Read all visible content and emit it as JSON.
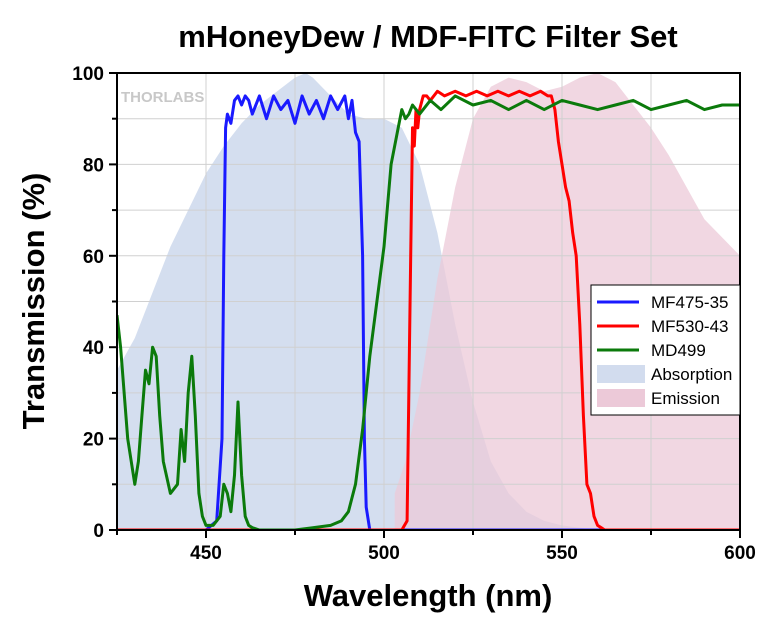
{
  "chart_data": {
    "type": "line",
    "title": "mHoneyDew / MDF-FITC Filter Set",
    "xlabel": "Wavelength (nm)",
    "ylabel": "Transmission (%)",
    "xlim": [
      425,
      600
    ],
    "ylim": [
      0,
      100
    ],
    "xticks": [
      450,
      500,
      550,
      600
    ],
    "yticks": [
      0,
      20,
      40,
      60,
      80,
      100
    ],
    "grid": true,
    "legend_position": "right",
    "watermark": "THORLABS",
    "series": [
      {
        "name": "MF475-35",
        "kind": "line",
        "color": "#1a1aff",
        "x": [
          425,
          450,
          453,
          454.5,
          455,
          455.5,
          456,
          457,
          458,
          459,
          460,
          461,
          462,
          463,
          465,
          467,
          469,
          471,
          473,
          475,
          477,
          479,
          481,
          483,
          485,
          487,
          489,
          490,
          491,
          492,
          493,
          494,
          494.5,
          495,
          496,
          500,
          600
        ],
        "y": [
          0,
          0,
          2,
          20,
          60,
          88,
          91,
          89,
          94,
          95,
          93,
          95,
          94,
          91,
          95,
          90,
          95,
          92,
          94,
          89,
          95,
          91,
          94,
          90,
          95,
          92,
          95,
          90,
          94,
          87,
          85,
          60,
          20,
          5,
          0,
          0,
          0
        ]
      },
      {
        "name": "MF530-43",
        "kind": "line",
        "color": "#ff0000",
        "x": [
          425,
          505,
          506.5,
          507.5,
          508,
          508.5,
          509,
          509.5,
          510,
          511,
          512,
          513,
          515,
          517,
          520,
          523,
          526,
          529,
          532,
          535,
          538,
          541,
          544,
          546,
          547,
          548,
          549,
          550,
          551,
          552,
          553,
          554,
          555,
          556,
          557,
          558,
          559,
          560,
          561,
          562,
          600
        ],
        "y": [
          0,
          0,
          2,
          60,
          88,
          84,
          92,
          88,
          92,
          95,
          95,
          94,
          96,
          95,
          96,
          95,
          96,
          95,
          96,
          95,
          96,
          95,
          96,
          95,
          95,
          92,
          85,
          80,
          75,
          72,
          65,
          60,
          45,
          25,
          10,
          8,
          3,
          1,
          0.5,
          0,
          0
        ]
      },
      {
        "name": "MD499",
        "kind": "line",
        "color": "#0b7a0b",
        "x": [
          425,
          426,
          428,
          430,
          431,
          432,
          433,
          434,
          435,
          436,
          437,
          438,
          440,
          442,
          443,
          444,
          445,
          446,
          447,
          448,
          449,
          450,
          452,
          454,
          455,
          456,
          457,
          458,
          459,
          460,
          461,
          462,
          463,
          465,
          470,
          475,
          480,
          485,
          488,
          490,
          492,
          494,
          496,
          498,
          500,
          502,
          504,
          505,
          506,
          507,
          508,
          510,
          513,
          516,
          520,
          525,
          530,
          535,
          540,
          545,
          550,
          555,
          560,
          565,
          570,
          575,
          580,
          585,
          590,
          595,
          600
        ],
        "y": [
          47,
          40,
          20,
          10,
          15,
          25,
          35,
          32,
          40,
          38,
          25,
          15,
          8,
          10,
          22,
          15,
          30,
          38,
          25,
          8,
          3,
          1,
          1,
          3,
          10,
          8,
          4,
          12,
          28,
          12,
          3,
          1,
          0.5,
          0,
          0,
          0,
          0.5,
          1,
          2,
          4,
          10,
          22,
          38,
          50,
          62,
          80,
          88,
          92,
          90,
          91,
          93,
          91,
          94,
          92,
          95,
          93,
          94,
          92,
          94,
          92,
          94,
          93,
          92,
          93,
          94,
          92,
          93,
          94,
          92,
          93,
          93
        ]
      },
      {
        "name": "Absorption",
        "kind": "area",
        "color": "#d2dcee",
        "x": [
          425,
          430,
          435,
          440,
          445,
          450,
          455,
          460,
          465,
          470,
          475,
          478,
          480,
          485,
          490,
          495,
          500,
          505,
          510,
          515,
          520,
          525,
          530,
          535,
          540,
          545,
          550,
          555,
          560
        ],
        "y": [
          35,
          42,
          52,
          62,
          70,
          78,
          84,
          89,
          93,
          96,
          99,
          100,
          99,
          95,
          91,
          90,
          90,
          88,
          80,
          65,
          45,
          28,
          15,
          8,
          4,
          2,
          1,
          0.5,
          0
        ]
      },
      {
        "name": "Emission",
        "kind": "area",
        "color": "#ecc9d8",
        "x": [
          503,
          506,
          510,
          515,
          520,
          525,
          530,
          535,
          540,
          545,
          550,
          555,
          560,
          565,
          570,
          575,
          580,
          585,
          590,
          595,
          600
        ],
        "y": [
          8,
          15,
          30,
          55,
          75,
          90,
          97,
          99,
          98,
          96,
          97,
          99,
          100,
          98,
          93,
          88,
          82,
          75,
          68,
          64,
          60
        ]
      }
    ]
  }
}
